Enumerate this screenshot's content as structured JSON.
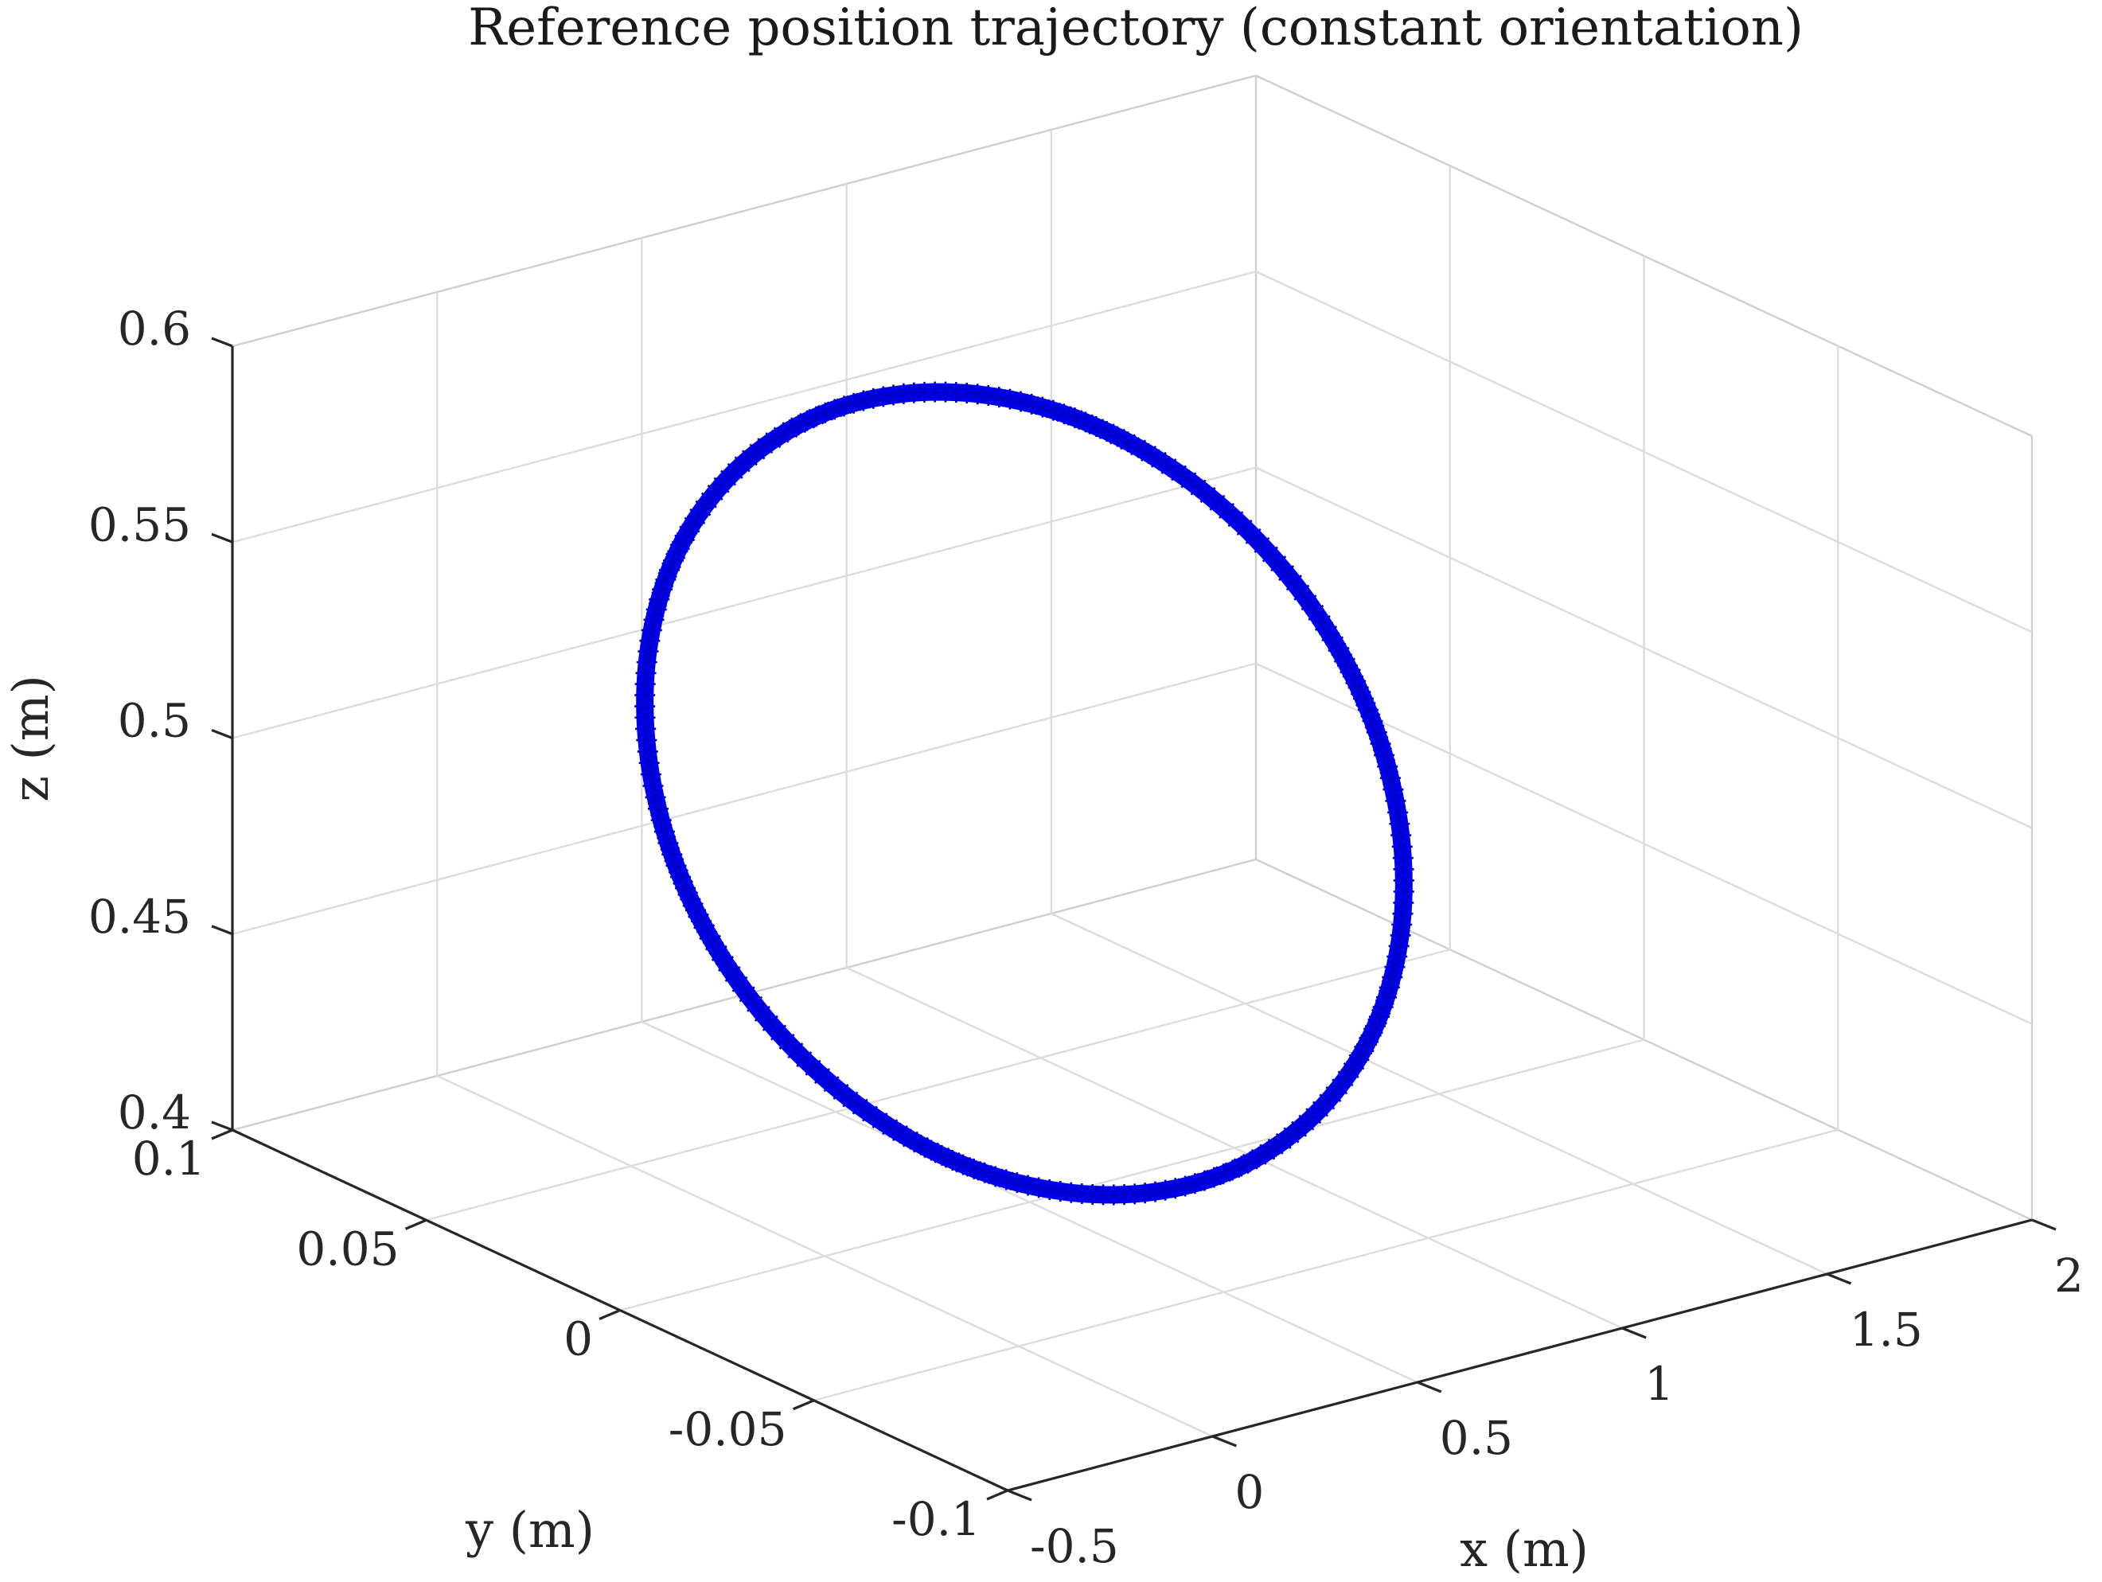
{
  "chart_data": {
    "type": "line3d",
    "title": "Reference position trajectory (constant orientation)",
    "xlabel": "x (m)",
    "ylabel": "y (m)",
    "zlabel": "z (m)",
    "xlim": [
      -0.5,
      2
    ],
    "ylim": [
      -0.1,
      0.1
    ],
    "zlim": [
      0.4,
      0.6
    ],
    "xticks": [
      -0.5,
      0,
      0.5,
      1,
      1.5,
      2
    ],
    "yticks": [
      -0.1,
      -0.05,
      0,
      0.05,
      0.1
    ],
    "zticks": [
      0.4,
      0.45,
      0.5,
      0.55,
      0.6
    ],
    "xtick_labels": [
      "-0.5",
      "0",
      "0.5",
      "1",
      "1.5",
      "2"
    ],
    "ytick_labels": [
      "-0.1",
      "-0.05",
      "0",
      "0.05",
      "0.1"
    ],
    "ztick_labels": [
      "0.4",
      "0.45",
      "0.5",
      "0.55",
      "0.6"
    ],
    "grid": true,
    "view": "3d-isometric",
    "series": [
      {
        "marker": "asterisk",
        "color": "#0000ff",
        "shape": "circle",
        "center": {
          "x": 0.75,
          "y": 0,
          "z": 0.5
        },
        "radius_x": 0.75,
        "radius_z": 0.1,
        "x": [
          0.75,
          1.0,
          1.2,
          1.33,
          1.5,
          1.47,
          1.37,
          1.2,
          0.95,
          0.75,
          0.5,
          0.3,
          0.16,
          0.05,
          0.0,
          0.03,
          0.13,
          0.3,
          0.55
        ],
        "y": [
          0,
          0,
          0,
          0,
          0,
          0,
          0,
          0,
          0,
          0,
          0,
          0,
          0,
          0,
          0,
          0,
          0,
          0,
          0
        ],
        "z": [
          0.6,
          0.592,
          0.567,
          0.537,
          0.5,
          0.46,
          0.43,
          0.41,
          0.4,
          0.4,
          0.403,
          0.418,
          0.438,
          0.47,
          0.5,
          0.53,
          0.567,
          0.59,
          0.598
        ]
      }
    ]
  }
}
